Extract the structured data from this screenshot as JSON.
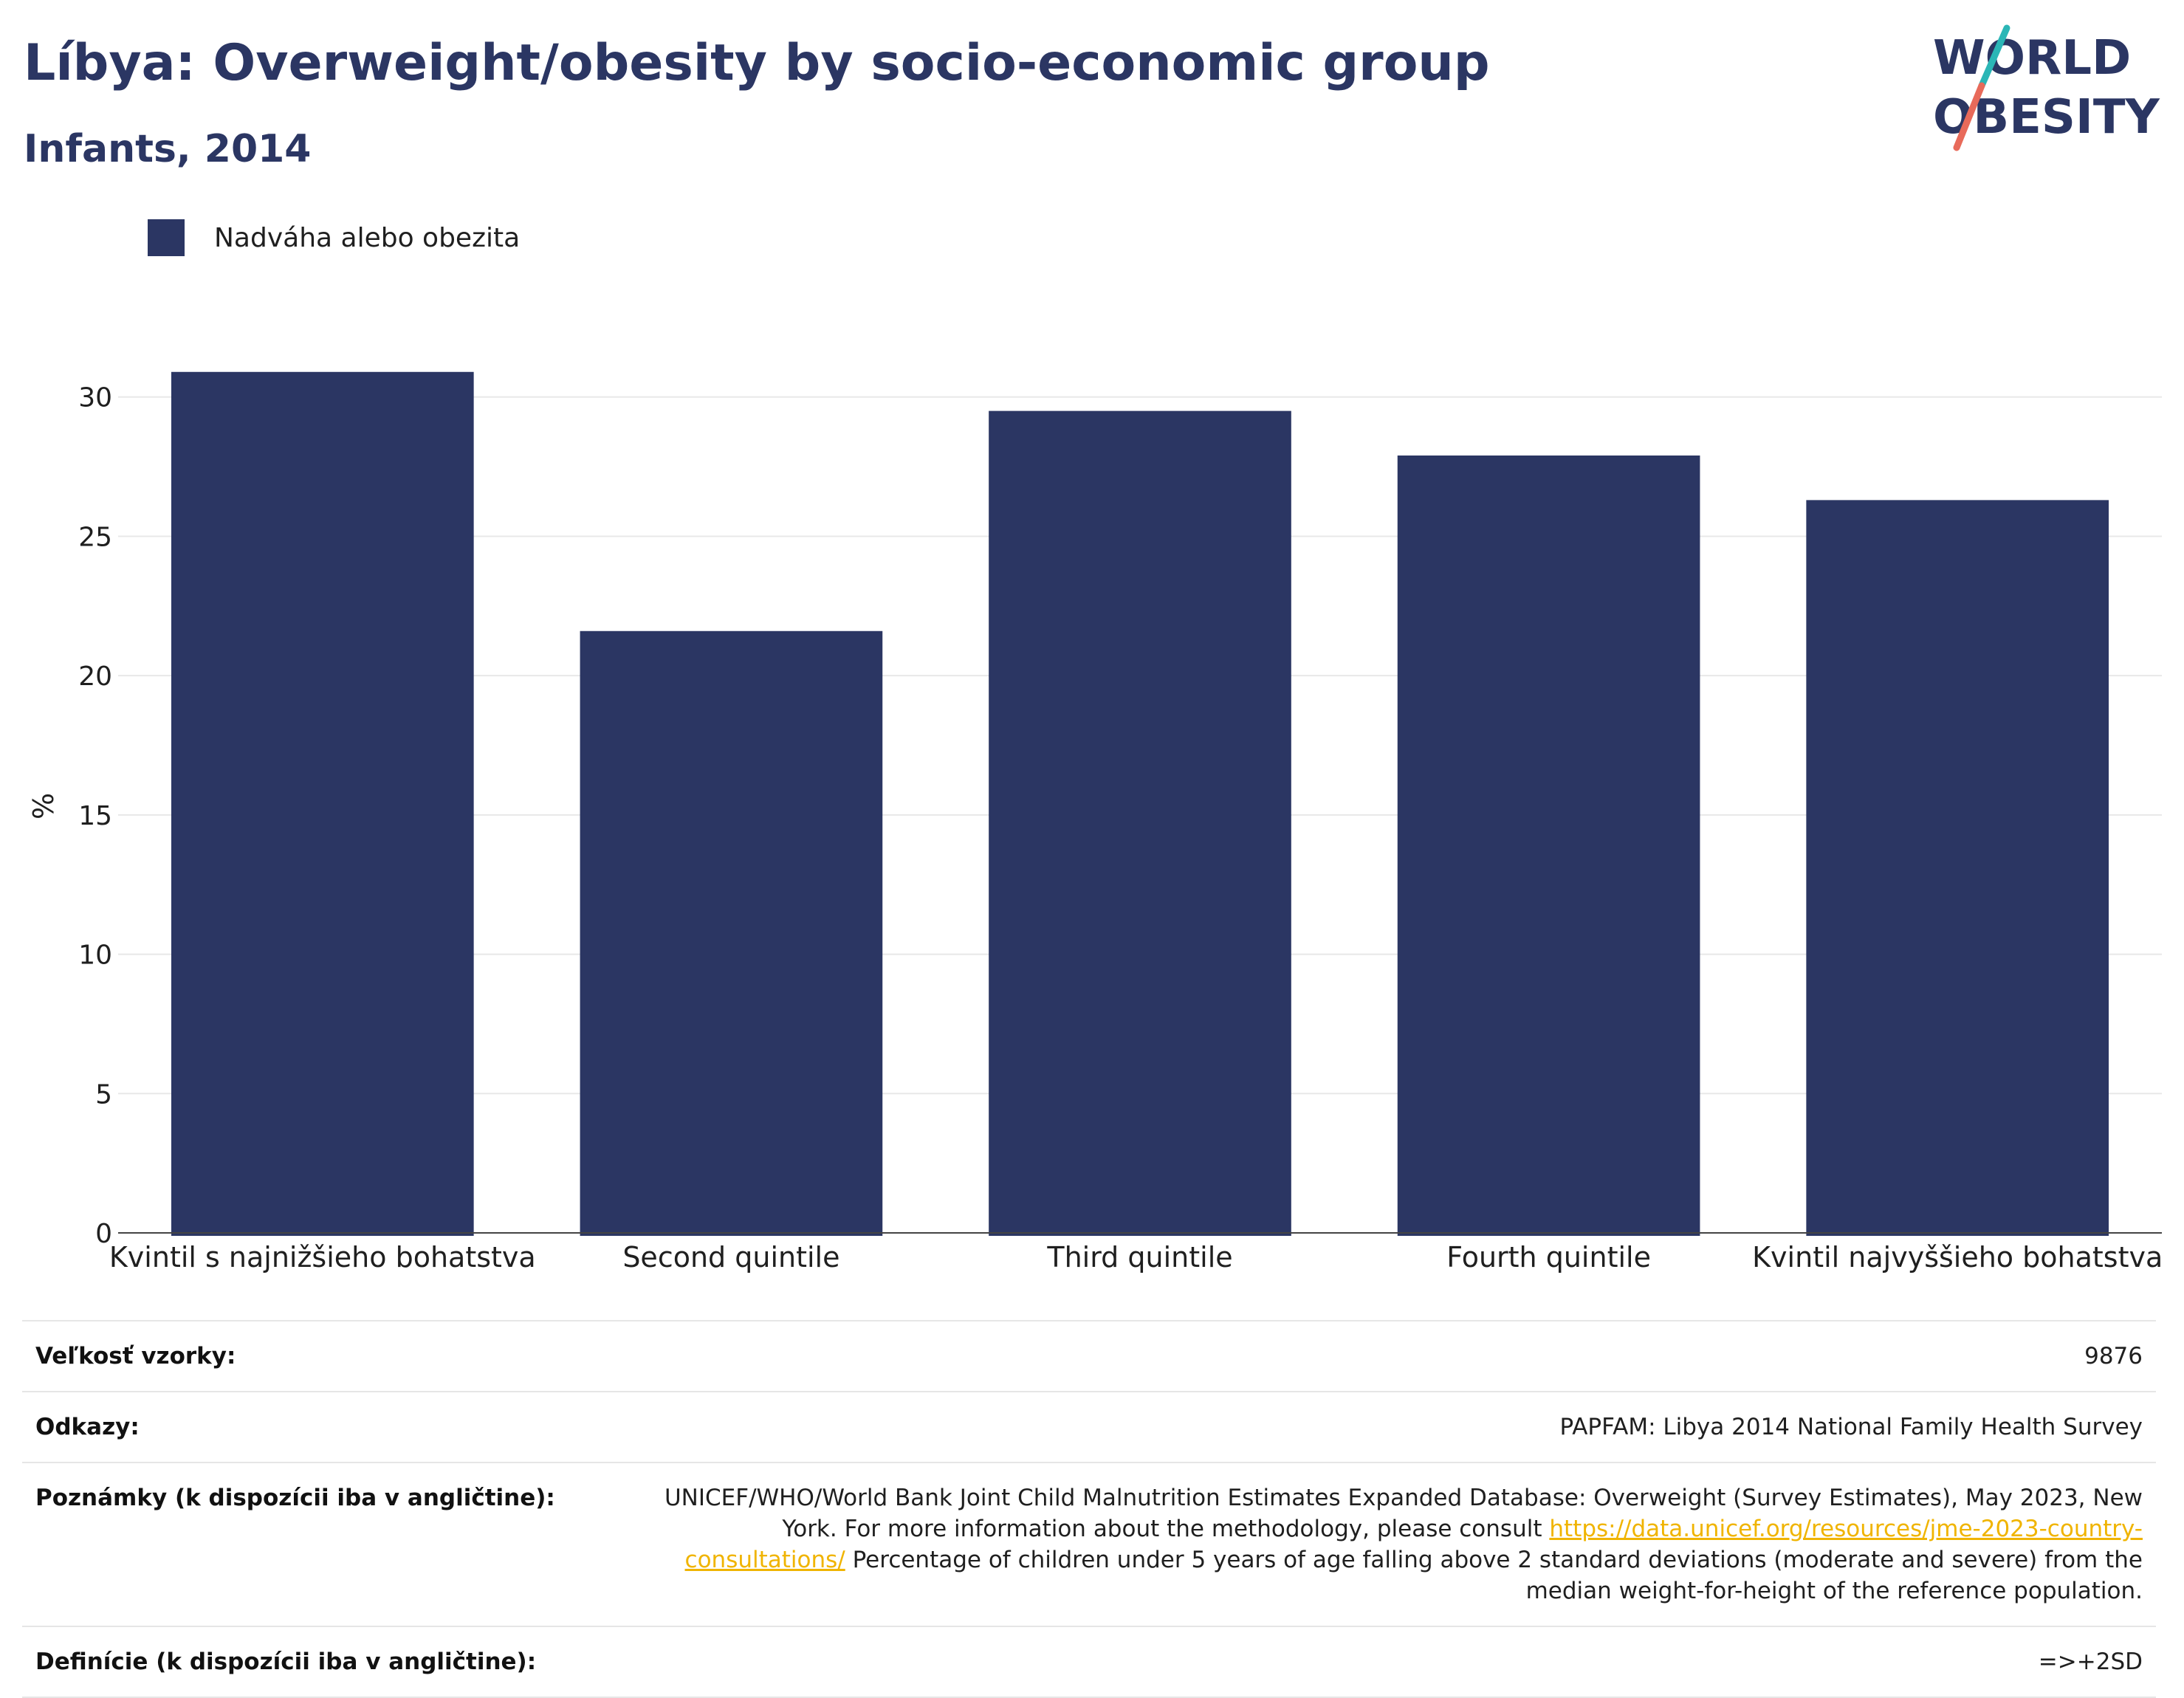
{
  "header": {
    "title": "Líbya: Overweight/obesity by socio-economic group",
    "subtitle": "Infants, 2014"
  },
  "logo": {
    "line1": "WORLD",
    "line2": "OBESITY"
  },
  "colors": {
    "bar": "#2b3663",
    "accent_teal": "#2bb6b6",
    "accent_coral": "#e86a5a",
    "grid": "#e8e8e8"
  },
  "chart_data": {
    "type": "bar",
    "categories": [
      "Kvintil s najnižšieho bohatstva",
      "Second quintile",
      "Third quintile",
      "Fourth quintile",
      "Kvintil najvyššieho bohatstva"
    ],
    "series": [
      {
        "name": "Nadváha alebo obezita",
        "values": [
          30.9,
          21.6,
          29.5,
          27.9,
          26.3
        ]
      }
    ],
    "ylabel": "%",
    "ylim": [
      0,
      31
    ],
    "yticks": [
      0,
      5,
      10,
      15,
      20,
      25,
      30
    ],
    "grid": true,
    "legend": "top-left"
  },
  "info": {
    "sample_size": {
      "label": "Veľkosť vzorky:",
      "value": "9876"
    },
    "references": {
      "label": "Odkazy:",
      "value": "PAPFAM: Libya 2014 National Family Health Survey"
    },
    "notes": {
      "label": "Poznámky (k dispozícii iba v angličtine):",
      "text_before": "UNICEF/WHO/World Bank Joint Child Malnutrition Estimates Expanded Database: Overweight (Survey Estimates), May 2023, New York. For more information about the methodology, please consult ",
      "link": "https://data.unicef.org/resources/jme-2023-country-consultations/",
      "text_after": " Percentage of children under 5 years of age falling above 2 standard deviations (moderate and severe) from the median weight-for-height of the reference population."
    },
    "definitions": {
      "label": "Definície (k dispozícii iba v angličtine):",
      "value": "=>+2SD"
    }
  }
}
